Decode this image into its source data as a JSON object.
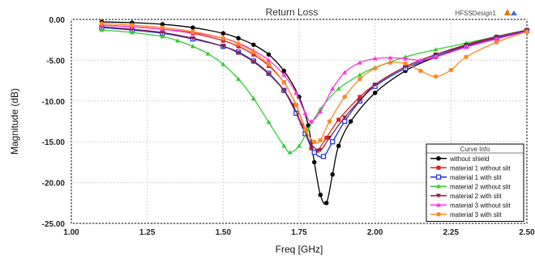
{
  "chart_data": {
    "type": "line",
    "title": "Return Loss",
    "design_name": "HFSSDesign1",
    "xlabel": "Freq [GHz]",
    "ylabel": "Magnitude (dB)",
    "xlim": [
      1.0,
      2.5
    ],
    "ylim": [
      -25.0,
      0.0
    ],
    "x_ticks": [
      "1.00",
      "1.25",
      "1.50",
      "1.75",
      "2.00",
      "2.25",
      "2.50"
    ],
    "y_ticks": [
      "0.00",
      "-5.00",
      "-10.00",
      "-15.00",
      "-20.00",
      "-25.00"
    ],
    "grid": true,
    "legend_title": "Curve Info",
    "legend_position": "bottom-right",
    "series": [
      {
        "name": "without shield",
        "color": "#000000",
        "marker": "circle-filled",
        "points": [
          [
            1.1,
            -0.3
          ],
          [
            1.2,
            -0.4
          ],
          [
            1.3,
            -0.6
          ],
          [
            1.4,
            -1.0
          ],
          [
            1.5,
            -1.7
          ],
          [
            1.55,
            -2.3
          ],
          [
            1.6,
            -3.1
          ],
          [
            1.65,
            -4.3
          ],
          [
            1.7,
            -6.3
          ],
          [
            1.75,
            -9.5
          ],
          [
            1.78,
            -13.0
          ],
          [
            1.8,
            -17.5
          ],
          [
            1.82,
            -21.5
          ],
          [
            1.84,
            -22.5
          ],
          [
            1.86,
            -19.0
          ],
          [
            1.88,
            -15.5
          ],
          [
            1.92,
            -12.5
          ],
          [
            2.0,
            -9.0
          ],
          [
            2.1,
            -6.3
          ],
          [
            2.2,
            -4.6
          ],
          [
            2.3,
            -3.3
          ],
          [
            2.4,
            -2.3
          ],
          [
            2.5,
            -1.4
          ]
        ]
      },
      {
        "name": "material 1 without slit",
        "color": "#e02020",
        "marker": "square-filled",
        "points": [
          [
            1.1,
            -0.7
          ],
          [
            1.2,
            -0.9
          ],
          [
            1.3,
            -1.2
          ],
          [
            1.4,
            -1.7
          ],
          [
            1.5,
            -2.6
          ],
          [
            1.55,
            -3.3
          ],
          [
            1.6,
            -4.3
          ],
          [
            1.65,
            -5.7
          ],
          [
            1.7,
            -7.7
          ],
          [
            1.74,
            -10.5
          ],
          [
            1.77,
            -13.5
          ],
          [
            1.79,
            -15.8
          ],
          [
            1.81,
            -16.1
          ],
          [
            1.84,
            -14.5
          ],
          [
            1.88,
            -12.3
          ],
          [
            1.95,
            -9.5
          ],
          [
            2.0,
            -8.0
          ],
          [
            2.1,
            -5.8
          ],
          [
            2.2,
            -4.3
          ],
          [
            2.3,
            -3.2
          ],
          [
            2.4,
            -2.2
          ],
          [
            2.5,
            -1.3
          ]
        ]
      },
      {
        "name": "material 1 with slit",
        "color": "#1a2fe0",
        "marker": "square-open",
        "points": [
          [
            1.1,
            -1.0
          ],
          [
            1.2,
            -1.3
          ],
          [
            1.3,
            -1.7
          ],
          [
            1.4,
            -2.4
          ],
          [
            1.5,
            -3.3
          ],
          [
            1.55,
            -4.0
          ],
          [
            1.6,
            -5.1
          ],
          [
            1.65,
            -6.6
          ],
          [
            1.7,
            -8.7
          ],
          [
            1.74,
            -11.5
          ],
          [
            1.77,
            -14.0
          ],
          [
            1.8,
            -16.3
          ],
          [
            1.83,
            -16.8
          ],
          [
            1.86,
            -15.0
          ],
          [
            1.9,
            -12.5
          ],
          [
            1.95,
            -10.0
          ],
          [
            2.0,
            -8.2
          ],
          [
            2.1,
            -6.0
          ],
          [
            2.2,
            -4.5
          ],
          [
            2.3,
            -3.3
          ],
          [
            2.4,
            -2.3
          ],
          [
            2.5,
            -1.4
          ]
        ]
      },
      {
        "name": "material 2 without slit",
        "color": "#33cc33",
        "marker": "triangle-filled",
        "points": [
          [
            1.1,
            -1.3
          ],
          [
            1.2,
            -1.6
          ],
          [
            1.3,
            -2.1
          ],
          [
            1.35,
            -2.6
          ],
          [
            1.4,
            -3.3
          ],
          [
            1.45,
            -4.2
          ],
          [
            1.5,
            -5.5
          ],
          [
            1.55,
            -7.3
          ],
          [
            1.6,
            -9.7
          ],
          [
            1.65,
            -12.6
          ],
          [
            1.7,
            -15.5
          ],
          [
            1.72,
            -16.3
          ],
          [
            1.75,
            -15.5
          ],
          [
            1.78,
            -13.5
          ],
          [
            1.82,
            -11.0
          ],
          [
            1.88,
            -8.5
          ],
          [
            1.95,
            -6.8
          ],
          [
            2.0,
            -5.9
          ],
          [
            2.1,
            -4.6
          ],
          [
            2.2,
            -3.7
          ],
          [
            2.3,
            -2.9
          ],
          [
            2.4,
            -2.1
          ],
          [
            2.5,
            -1.3
          ]
        ]
      },
      {
        "name": "material 2 with slit",
        "color": "#8b2040",
        "marker": "triangle-down-filled",
        "points": [
          [
            1.1,
            -0.9
          ],
          [
            1.2,
            -1.2
          ],
          [
            1.3,
            -1.6
          ],
          [
            1.4,
            -2.3
          ],
          [
            1.5,
            -3.3
          ],
          [
            1.55,
            -4.1
          ],
          [
            1.6,
            -5.2
          ],
          [
            1.65,
            -6.7
          ],
          [
            1.7,
            -8.7
          ],
          [
            1.73,
            -10.5
          ],
          [
            1.76,
            -13.0
          ],
          [
            1.79,
            -15.3
          ],
          [
            1.82,
            -16.0
          ],
          [
            1.85,
            -14.5
          ],
          [
            1.9,
            -12.0
          ],
          [
            1.95,
            -9.9
          ],
          [
            2.0,
            -8.0
          ],
          [
            2.1,
            -5.8
          ],
          [
            2.2,
            -4.3
          ],
          [
            2.3,
            -3.1
          ],
          [
            2.4,
            -2.1
          ],
          [
            2.5,
            -1.3
          ]
        ]
      },
      {
        "name": "material 3 without slit",
        "color": "#ff33dd",
        "marker": "triangle-filled",
        "points": [
          [
            1.1,
            -0.7
          ],
          [
            1.2,
            -0.9
          ],
          [
            1.3,
            -1.2
          ],
          [
            1.4,
            -1.6
          ],
          [
            1.5,
            -2.3
          ],
          [
            1.55,
            -2.9
          ],
          [
            1.6,
            -3.8
          ],
          [
            1.65,
            -5.0
          ],
          [
            1.7,
            -6.8
          ],
          [
            1.74,
            -9.0
          ],
          [
            1.77,
            -11.5
          ],
          [
            1.79,
            -12.5
          ],
          [
            1.82,
            -11.3
          ],
          [
            1.86,
            -8.5
          ],
          [
            1.9,
            -6.5
          ],
          [
            1.95,
            -5.3
          ],
          [
            2.0,
            -4.8
          ],
          [
            2.05,
            -4.7
          ],
          [
            2.1,
            -4.8
          ],
          [
            2.15,
            -5.0
          ],
          [
            2.2,
            -4.6
          ],
          [
            2.3,
            -3.4
          ],
          [
            2.4,
            -2.4
          ],
          [
            2.5,
            -1.5
          ]
        ]
      },
      {
        "name": "material 3 with slit",
        "color": "#ff8822",
        "marker": "circle-filled",
        "points": [
          [
            1.1,
            -0.5
          ],
          [
            1.2,
            -0.7
          ],
          [
            1.3,
            -1.0
          ],
          [
            1.4,
            -1.5
          ],
          [
            1.5,
            -2.3
          ],
          [
            1.55,
            -3.0
          ],
          [
            1.6,
            -4.0
          ],
          [
            1.65,
            -5.5
          ],
          [
            1.7,
            -7.7
          ],
          [
            1.74,
            -10.5
          ],
          [
            1.77,
            -13.5
          ],
          [
            1.8,
            -15.0
          ],
          [
            1.82,
            -14.8
          ],
          [
            1.85,
            -12.5
          ],
          [
            1.9,
            -9.5
          ],
          [
            1.95,
            -7.3
          ],
          [
            2.0,
            -6.0
          ],
          [
            2.05,
            -5.3
          ],
          [
            2.1,
            -5.4
          ],
          [
            2.15,
            -6.3
          ],
          [
            2.2,
            -7.0
          ],
          [
            2.25,
            -6.2
          ],
          [
            2.3,
            -4.6
          ],
          [
            2.4,
            -2.8
          ],
          [
            2.5,
            -1.5
          ]
        ]
      }
    ]
  }
}
